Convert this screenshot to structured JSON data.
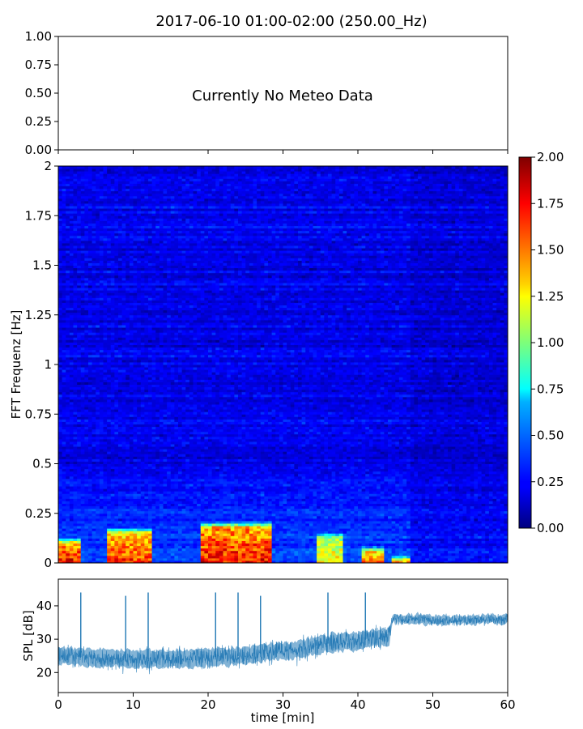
{
  "chart_data": [
    {
      "type": "text-panel",
      "title": "2017-06-10 01:00-02:00 (250.00_Hz)",
      "annotation": "Currently No Meteo Data",
      "ylim": [
        0,
        1
      ],
      "yticks": [
        "0.00",
        "0.25",
        "0.50",
        "0.75",
        "1.00"
      ],
      "xlim": [
        0,
        60
      ],
      "xtick_values": [
        0,
        10,
        20,
        30,
        40,
        50,
        60
      ]
    },
    {
      "type": "heatmap",
      "ylabel": "FFT Frequenz [Hz]",
      "xlim": [
        0,
        60
      ],
      "ylim": [
        0,
        2
      ],
      "ytick_values": [
        0,
        0.25,
        0.5,
        0.75,
        1,
        1.25,
        1.5,
        1.75,
        2
      ],
      "yticks": [
        "0",
        "0.25",
        "0.5",
        "0.75",
        "1",
        "1.25",
        "1.5",
        "1.75",
        "2"
      ],
      "colormap": "jet",
      "colorbar": {
        "range": [
          0,
          2
        ],
        "ticks": [
          "0.00",
          "0.25",
          "0.50",
          "0.75",
          "1.00",
          "1.25",
          "1.50",
          "1.75",
          "2.00"
        ]
      },
      "background_level": 0.2,
      "high_energy_blocks": [
        {
          "t_start": 0,
          "t_end": 3,
          "f_max": 0.1,
          "level": 1.9
        },
        {
          "t_start": 6.3,
          "t_end": 12.5,
          "f_max": 0.15,
          "level": 1.8
        },
        {
          "t_start": 19,
          "t_end": 28.5,
          "f_max": 0.18,
          "level": 1.9
        },
        {
          "t_start": 34.5,
          "t_end": 38,
          "f_max": 0.13,
          "level": 1.4
        },
        {
          "t_start": 40.5,
          "t_end": 43.5,
          "f_max": 0.06,
          "level": 1.7
        },
        {
          "t_start": 44.5,
          "t_end": 47,
          "f_max": 0.02,
          "level": 1.6
        }
      ]
    },
    {
      "type": "line",
      "ylabel": "SPL [dB]",
      "xlabel": "time [min]",
      "xlim": [
        0,
        60
      ],
      "ylim": [
        14,
        48
      ],
      "xticks": [
        "0",
        "10",
        "20",
        "30",
        "40",
        "50",
        "60"
      ],
      "xtick_values": [
        0,
        10,
        20,
        30,
        40,
        50,
        60
      ],
      "ytick_values": [
        20,
        30,
        40
      ],
      "yticks": [
        "20",
        "30",
        "40"
      ],
      "color": "#1f77b4",
      "series": [
        {
          "x": [
            0,
            5,
            10,
            15,
            20,
            25,
            28,
            31,
            34,
            37,
            40,
            44.3,
            44.5,
            48,
            52,
            56,
            60
          ],
          "y": [
            25,
            24.5,
            24,
            24,
            24.5,
            25,
            26,
            26.5,
            28,
            29,
            29.5,
            31,
            36,
            36,
            35.5,
            36,
            36
          ]
        }
      ],
      "spikes": [
        {
          "t": 3,
          "peak": 44
        },
        {
          "t": 9,
          "peak": 43
        },
        {
          "t": 12,
          "peak": 44
        },
        {
          "t": 21,
          "peak": 44
        },
        {
          "t": 24,
          "peak": 44
        },
        {
          "t": 27,
          "peak": 43
        },
        {
          "t": 36,
          "peak": 44
        },
        {
          "t": 41,
          "peak": 44
        }
      ]
    }
  ]
}
